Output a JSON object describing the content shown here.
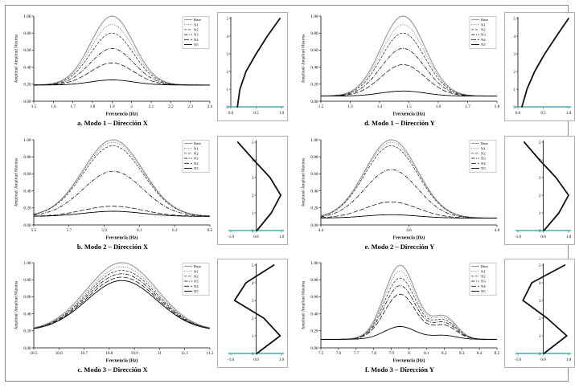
{
  "figure": {
    "background": "#ffffff",
    "axis_color": "#000000",
    "shape_axis_color": "#2a9d9d",
    "response_ylabel": "Amplitud/ Amplitud Máxima",
    "response_xlabel": "Frecuencia (Hz)",
    "ytick_labels": [
      "0.00",
      "0.20",
      "0.40",
      "0.60",
      "0.80",
      "1.00"
    ]
  },
  "chart_data": [
    {
      "id": "a",
      "caption": "a. Modo 1 – Dirección X",
      "response": {
        "type": "line",
        "xlabel": "Frecuencia (Hz)",
        "ylabel": "Amplitud/ Amplitud Máxima",
        "xlim": [
          1.5,
          2.4
        ],
        "ylim": [
          0,
          1
        ],
        "xtick_labels": [
          "1.5",
          "1.6",
          "1.7",
          "1.8",
          "1.9",
          "2",
          "2.1",
          "2.2",
          "2.3",
          "2.4"
        ],
        "ytick_labels": [
          "0.00",
          "0.20",
          "0.40",
          "0.60",
          "0.80",
          "1.00"
        ],
        "legend_position": "top-right",
        "peak_center_hz": 1.9,
        "peak_sigma_hz": 0.11,
        "baseline": 0.19,
        "series": [
          {
            "name": "Base",
            "peak": 1.0
          },
          {
            "name": "N1",
            "peak": 0.9
          },
          {
            "name": "N2",
            "peak": 0.8
          },
          {
            "name": "N3",
            "peak": 0.62
          },
          {
            "name": "N4",
            "peak": 0.45
          },
          {
            "name": "N5",
            "peak": 0.25
          }
        ]
      },
      "mode_shape": {
        "type": "line",
        "xlim": [
          0,
          1
        ],
        "ylim": [
          0,
          5
        ],
        "xtick_labels": [
          "0.0",
          "0.5",
          "1.0"
        ],
        "ytick_labels": [
          "0",
          "1",
          "2",
          "3",
          "4",
          "5"
        ],
        "points": [
          [
            0.13,
            0
          ],
          [
            0.18,
            1
          ],
          [
            0.3,
            2
          ],
          [
            0.5,
            3
          ],
          [
            0.72,
            4
          ],
          [
            0.97,
            5
          ]
        ]
      }
    },
    {
      "id": "b",
      "caption": "b. Modo 2 – Dirección X",
      "response": {
        "type": "line",
        "xlabel": "Frecuencia (Hz)",
        "ylabel": "Amplitud/ Amplitud Máxima",
        "xlim": [
          5.5,
          6.5
        ],
        "ylim": [
          0,
          1
        ],
        "xtick_labels": [
          "5.5",
          "5.7",
          "5.9",
          "6.1",
          "6.3",
          "6.5"
        ],
        "ytick_labels": [
          "0.00",
          "0.20",
          "0.40",
          "0.60",
          "0.80",
          "1.00"
        ],
        "legend_position": "top-right",
        "peak_center_hz": 5.95,
        "peak_sigma_hz": 0.17,
        "baseline": 0.1,
        "series": [
          {
            "name": "Base",
            "peak": 1.0
          },
          {
            "name": "N1",
            "peak": 0.97
          },
          {
            "name": "N2",
            "peak": 0.93
          },
          {
            "name": "N3",
            "peak": 0.63
          },
          {
            "name": "N4",
            "peak": 0.22
          },
          {
            "name": "N5",
            "peak": 0.16
          }
        ]
      },
      "mode_shape": {
        "type": "line",
        "xlim": [
          -1,
          1
        ],
        "ylim": [
          0,
          5
        ],
        "xtick_labels": [
          "-1.0",
          "0.0",
          "1.0"
        ],
        "ytick_labels": [
          "0",
          "1",
          "2",
          "3",
          "4",
          "5"
        ],
        "points": [
          [
            0.03,
            0
          ],
          [
            0.6,
            1
          ],
          [
            0.97,
            2
          ],
          [
            0.55,
            3
          ],
          [
            -0.1,
            4
          ],
          [
            -0.72,
            5
          ]
        ]
      }
    },
    {
      "id": "c",
      "caption": "c. Modo 3 – Dirección X",
      "response": {
        "type": "line",
        "xlabel": "Frecuencia (Hz)",
        "ylabel": "Amplitud/ Amplitud Máxima",
        "xlim": [
          10.5,
          11.2
        ],
        "ylim": [
          0,
          1
        ],
        "xtick_labels": [
          "10.5",
          "10.6",
          "10.7",
          "10.8",
          "10.9",
          "11",
          "11.1",
          "11.2"
        ],
        "ytick_labels": [
          "0.00",
          "0.20",
          "0.40",
          "0.60",
          "0.80",
          "1.00"
        ],
        "legend_position": "top-right",
        "peak_center_hz": 10.85,
        "peak_sigma_hz": 0.14,
        "baseline": 0.2,
        "series": [
          {
            "name": "Base",
            "peak": 1.0
          },
          {
            "name": "N1",
            "peak": 0.95
          },
          {
            "name": "N2",
            "peak": 0.91
          },
          {
            "name": "N3",
            "peak": 0.87
          },
          {
            "name": "N4",
            "peak": 0.83
          },
          {
            "name": "N5",
            "peak": 0.79
          }
        ]
      },
      "mode_shape": {
        "type": "line",
        "xlim": [
          -1,
          1
        ],
        "ylim": [
          0,
          5
        ],
        "xtick_labels": [
          "-1.0",
          "0.0",
          "1.0"
        ],
        "ytick_labels": [
          "0",
          "1",
          "2",
          "3",
          "4",
          "5"
        ],
        "points": [
          [
            0.03,
            0
          ],
          [
            0.95,
            1
          ],
          [
            0.3,
            2
          ],
          [
            -0.85,
            3
          ],
          [
            -0.4,
            4
          ],
          [
            0.7,
            5
          ]
        ]
      }
    },
    {
      "id": "d",
      "caption": "d. Modo 1 – Dirección Y",
      "response": {
        "type": "line",
        "xlabel": "Frecuencia (Hz)",
        "ylabel": "Amplitud/ Amplitud Máxima",
        "xlim": [
          1.2,
          1.8
        ],
        "ylim": [
          0,
          1
        ],
        "xtick_labels": [
          "1.2",
          "1.3",
          "1.4",
          "1.5",
          "1.6",
          "1.7",
          "1.8"
        ],
        "ytick_labels": [
          "0.00",
          "0.20",
          "0.40",
          "0.60",
          "0.80",
          "1.00"
        ],
        "legend_position": "top-right",
        "peak_center_hz": 1.48,
        "peak_sigma_hz": 0.075,
        "baseline": 0.06,
        "series": [
          {
            "name": "Base",
            "peak": 1.0
          },
          {
            "name": "N1",
            "peak": 0.9
          },
          {
            "name": "N2",
            "peak": 0.8
          },
          {
            "name": "N3",
            "peak": 0.62
          },
          {
            "name": "N4",
            "peak": 0.43
          },
          {
            "name": "N5",
            "peak": 0.12
          }
        ]
      },
      "mode_shape": {
        "type": "line",
        "xlim": [
          0,
          1
        ],
        "ylim": [
          0,
          5
        ],
        "xtick_labels": [
          "0.0",
          "0.5",
          "1.0"
        ],
        "ytick_labels": [
          "0",
          "1",
          "2",
          "3",
          "4",
          "5"
        ],
        "points": [
          [
            0.08,
            0
          ],
          [
            0.18,
            1
          ],
          [
            0.33,
            2
          ],
          [
            0.53,
            3
          ],
          [
            0.76,
            4
          ],
          [
            1.0,
            5
          ]
        ]
      }
    },
    {
      "id": "e",
      "caption": "e. Modo 2 – Dirección Y",
      "response": {
        "type": "line",
        "xlabel": "Frecuencia (Hz)",
        "ylabel": "Amplitud/ Amplitud Máxima",
        "xlim": [
          4.4,
          4.8
        ],
        "ylim": [
          0,
          1
        ],
        "xtick_labels": [
          "4.4",
          "4.6",
          "4.8"
        ],
        "ytick_labels": [
          "0.00",
          "0.20",
          "0.40",
          "0.60",
          "0.80",
          "1.00"
        ],
        "legend_position": "top-right",
        "peak_center_hz": 4.56,
        "peak_sigma_hz": 0.06,
        "baseline": 0.08,
        "series": [
          {
            "name": "Base",
            "peak": 1.0
          },
          {
            "name": "N1",
            "peak": 0.97
          },
          {
            "name": "N2",
            "peak": 0.93
          },
          {
            "name": "N3",
            "peak": 0.65
          },
          {
            "name": "N4",
            "peak": 0.27
          },
          {
            "name": "N5",
            "peak": 0.12
          }
        ]
      },
      "mode_shape": {
        "type": "line",
        "xlim": [
          -1,
          1
        ],
        "ylim": [
          0,
          5
        ],
        "xtick_labels": [
          "-1.0",
          "0.0",
          "1.0"
        ],
        "ytick_labels": [
          "0",
          "1",
          "2",
          "3",
          "4",
          "5"
        ],
        "points": [
          [
            0.03,
            0
          ],
          [
            0.62,
            1
          ],
          [
            1.0,
            2
          ],
          [
            0.5,
            3
          ],
          [
            -0.15,
            4
          ],
          [
            -0.75,
            5
          ]
        ]
      }
    },
    {
      "id": "f",
      "caption": "f. Modo 3 – Dirección Y",
      "response": {
        "type": "line",
        "xlabel": "Frecuencia (Hz)",
        "ylabel": "Amplitud/ Amplitud Máxima",
        "xlim": [
          7.5,
          8.5
        ],
        "ylim": [
          0,
          1
        ],
        "xtick_labels": [
          "7.5",
          "7.6",
          "7.7",
          "7.8",
          "7.9",
          "8",
          "8.1",
          "8.2",
          "8.3",
          "8.4",
          "8.5"
        ],
        "ytick_labels": [
          "0.00",
          "0.20",
          "0.40",
          "0.60",
          "0.80",
          "1.00"
        ],
        "legend_position": "top-right",
        "peak_center_hz": 7.95,
        "peak_sigma_hz": 0.09,
        "baseline": 0.1,
        "shoulder": {
          "center": 8.2,
          "sigma": 0.07,
          "fraction": 0.3
        },
        "series": [
          {
            "name": "Base",
            "peak": 0.97
          },
          {
            "name": "N1",
            "peak": 0.9
          },
          {
            "name": "N2",
            "peak": 0.82
          },
          {
            "name": "N3",
            "peak": 0.73
          },
          {
            "name": "N4",
            "peak": 0.63
          },
          {
            "name": "N5",
            "peak": 0.25
          }
        ]
      },
      "mode_shape": {
        "type": "line",
        "xlim": [
          -1,
          1
        ],
        "ylim": [
          0,
          5
        ],
        "xtick_labels": [
          "-1.0",
          "0.0",
          "1.0"
        ],
        "ytick_labels": [
          "0",
          "1",
          "2",
          "3",
          "4",
          "5"
        ],
        "points": [
          [
            0.03,
            0
          ],
          [
            0.93,
            1
          ],
          [
            0.15,
            2
          ],
          [
            -0.8,
            3
          ],
          [
            -0.45,
            4
          ],
          [
            0.85,
            5
          ]
        ]
      }
    }
  ]
}
